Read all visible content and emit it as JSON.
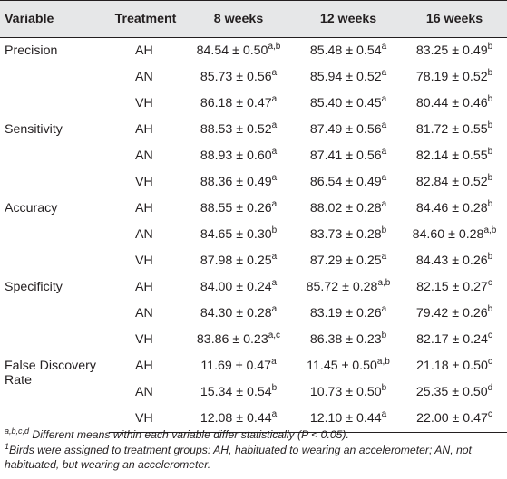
{
  "columns": {
    "variable": "Variable",
    "treatment": "Treatment",
    "w8": "8 weeks",
    "w12": "12 weeks",
    "w16": "16 weeks"
  },
  "rows": [
    {
      "variable": "Precision",
      "treatment": "AH",
      "w8": {
        "v": "84.54 ± 0.50",
        "s": "a,b"
      },
      "w12": {
        "v": "85.48 ± 0.54",
        "s": "a"
      },
      "w16": {
        "v": "83.25 ± 0.49",
        "s": "b"
      }
    },
    {
      "variable": "",
      "treatment": "AN",
      "w8": {
        "v": "85.73 ± 0.56",
        "s": "a"
      },
      "w12": {
        "v": "85.94 ± 0.52",
        "s": "a"
      },
      "w16": {
        "v": "78.19 ± 0.52",
        "s": "b"
      }
    },
    {
      "variable": "",
      "treatment": "VH",
      "w8": {
        "v": "86.18 ± 0.47",
        "s": "a"
      },
      "w12": {
        "v": "85.40 ± 0.45",
        "s": "a"
      },
      "w16": {
        "v": "80.44 ± 0.46",
        "s": "b"
      }
    },
    {
      "variable": "Sensitivity",
      "treatment": "AH",
      "w8": {
        "v": "88.53 ± 0.52",
        "s": "a"
      },
      "w12": {
        "v": "87.49 ± 0.56",
        "s": "a"
      },
      "w16": {
        "v": "81.72 ± 0.55",
        "s": "b"
      }
    },
    {
      "variable": "",
      "treatment": "AN",
      "w8": {
        "v": "88.93 ± 0.60",
        "s": "a"
      },
      "w12": {
        "v": "87.41 ± 0.56",
        "s": "a"
      },
      "w16": {
        "v": "82.14 ± 0.55",
        "s": "b"
      }
    },
    {
      "variable": "",
      "treatment": "VH",
      "w8": {
        "v": "88.36 ± 0.49",
        "s": "a"
      },
      "w12": {
        "v": "86.54 ± 0.49",
        "s": "a"
      },
      "w16": {
        "v": "82.84 ± 0.52",
        "s": "b"
      }
    },
    {
      "variable": "Accuracy",
      "treatment": "AH",
      "w8": {
        "v": "88.55 ± 0.26",
        "s": "a"
      },
      "w12": {
        "v": "88.02 ± 0.28",
        "s": "a"
      },
      "w16": {
        "v": "84.46 ± 0.28",
        "s": "b"
      }
    },
    {
      "variable": "",
      "treatment": "AN",
      "w8": {
        "v": "84.65 ± 0.30",
        "s": "b"
      },
      "w12": {
        "v": "83.73 ± 0.28",
        "s": "b"
      },
      "w16": {
        "v": "84.60 ± 0.28",
        "s": "a,b"
      }
    },
    {
      "variable": "",
      "treatment": "VH",
      "w8": {
        "v": "87.98 ± 0.25",
        "s": "a"
      },
      "w12": {
        "v": "87.29 ± 0.25",
        "s": "a"
      },
      "w16": {
        "v": "84.43 ± 0.26",
        "s": "b"
      }
    },
    {
      "variable": "Specificity",
      "treatment": "AH",
      "w8": {
        "v": "84.00 ± 0.24",
        "s": "a"
      },
      "w12": {
        "v": "85.72 ± 0.28",
        "s": "a,b"
      },
      "w16": {
        "v": "82.15 ± 0.27",
        "s": "c"
      }
    },
    {
      "variable": "",
      "treatment": "AN",
      "w8": {
        "v": "84.30 ± 0.28",
        "s": "a"
      },
      "w12": {
        "v": "83.19 ± 0.26",
        "s": "a"
      },
      "w16": {
        "v": "79.42 ± 0.26",
        "s": "b"
      }
    },
    {
      "variable": "",
      "treatment": "VH",
      "w8": {
        "v": "83.86 ± 0.23",
        "s": "a,c"
      },
      "w12": {
        "v": "86.38 ± 0.23",
        "s": "b"
      },
      "w16": {
        "v": "82.17 ± 0.24",
        "s": "c"
      }
    },
    {
      "variable": "False Discovery Rate",
      "treatment": "AH",
      "w8": {
        "v": "11.69 ± 0.47",
        "s": "a"
      },
      "w12": {
        "v": "11.45 ± 0.50",
        "s": "a,b"
      },
      "w16": {
        "v": "21.18 ± 0.50",
        "s": "c"
      }
    },
    {
      "variable": "",
      "treatment": "AN",
      "w8": {
        "v": "15.34 ± 0.54",
        "s": "b"
      },
      "w12": {
        "v": "10.73 ± 0.50",
        "s": "b"
      },
      "w16": {
        "v": "25.35 ± 0.50",
        "s": "d"
      }
    },
    {
      "variable": "",
      "treatment": "VH",
      "w8": {
        "v": "12.08 ± 0.44",
        "s": "a"
      },
      "w12": {
        "v": "12.10 ± 0.44",
        "s": "a"
      },
      "w16": {
        "v": "22.00 ± 0.47",
        "s": "c"
      }
    }
  ],
  "footnotes": [
    {
      "mark": "a,b,c,d",
      "text": " Different means within each variable differ statistically (P < 0.05)."
    },
    {
      "mark": "1",
      "text": "Birds were assigned to treatment groups: AH, habituated to wearing an accelerometer; AN, not habituated, but wearing an accelerometer."
    }
  ]
}
